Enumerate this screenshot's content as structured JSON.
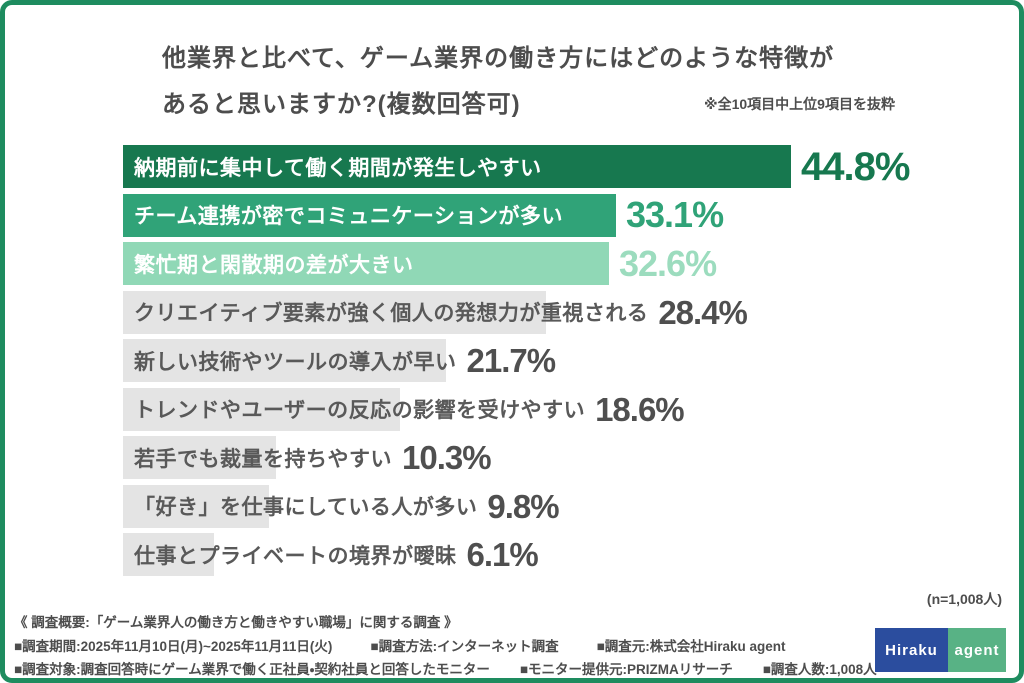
{
  "frame": {
    "border_color": "#1e8c5f",
    "background": "#ffffff"
  },
  "header": {
    "title_line1": "他業界と比べて、ゲーム業界の働き方にはどのような特徴が",
    "title_line2": "あると思いますか?(複数回答可)",
    "note": "※全10項目中上位9項目を抜粋"
  },
  "chart_data": {
    "type": "bar",
    "orientation": "horizontal",
    "unit": "%",
    "title": "他業界と比べて、ゲーム業界の働き方にはどのような特徴があると思いますか?(複数回答可)",
    "categories": [
      "納期前に集中して働く期間が発生しやすい",
      "チーム連携が密でコミュニケーションが多い",
      "繁忙期と閑散期の差が大きい",
      "クリエイティブ要素が強く個人の発想力が重視される",
      "新しい技術やツールの導入が早い",
      "トレンドやユーザーの反応の影響を受けやすい",
      "若手でも裁量を持ちやすい",
      "「好き」を仕事にしている人が多い",
      "仕事とプライベートの境界が曖昧"
    ],
    "values": [
      44.8,
      33.1,
      32.6,
      28.4,
      21.7,
      18.6,
      10.3,
      9.8,
      6.1
    ],
    "bar_colors": [
      "#17784f",
      "#30a378",
      "#90d8b6",
      "#e4e4e4",
      "#e4e4e4",
      "#e4e4e4",
      "#e4e4e4",
      "#e4e4e4",
      "#e4e4e4"
    ],
    "label_colors": [
      "#ffffff",
      "#ffffff",
      "#ffffff",
      "#595959",
      "#595959",
      "#595959",
      "#595959",
      "#595959",
      "#595959"
    ],
    "value_colors": [
      "#17784f",
      "#30a378",
      "#9cdcbe",
      "#4f4f4f",
      "#4f4f4f",
      "#4f4f4f",
      "#4f4f4f",
      "#4f4f4f",
      "#4f4f4f"
    ],
    "xlim": [
      0,
      50
    ],
    "grid": false,
    "legend": false,
    "sample_note": "(n=1,008人)"
  },
  "footer": {
    "summary": "《 調査概要:「ゲーム業界人の働き方と働きやすい職場」に関する調査 》",
    "line2": [
      "■調査期間:2025年11月10日(月)~2025年11月11日(火)",
      "■調査方法:インターネット調査",
      "■調査元:株式会社Hiraku agent"
    ],
    "line3": [
      "■調査対象:調査回答時にゲーム業界で働く正社員・契約社員と回答したモニター",
      "■モニター提供元:PRIZMAリサーチ",
      "■調査人数:1,008人"
    ],
    "logo": {
      "left_text": "Hiraku",
      "right_text": "agent",
      "left_bg": "#2b4d9e",
      "right_bg": "#58b285"
    }
  }
}
